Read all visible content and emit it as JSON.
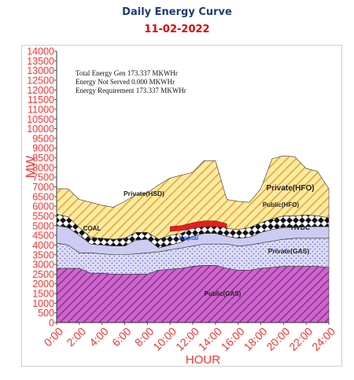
{
  "header": {
    "title": "Daily Energy Curve",
    "date": "11-02-2022"
  },
  "chart_data": {
    "type": "area",
    "title": "Daily Energy Curve",
    "subtitle": "11-02-2022",
    "xlabel": "HOUR",
    "ylabel": "MW",
    "ylim": [
      0,
      14000
    ],
    "yticks": [
      "0",
      "500",
      "1000",
      "1500",
      "2000",
      "2500",
      "3000",
      "3500",
      "4000",
      "4500",
      "5000",
      "5500",
      "6000",
      "6500",
      "7000",
      "7500",
      "8000",
      "8500",
      "9000",
      "9500",
      "10000",
      "10500",
      "11000",
      "11500",
      "12000",
      "12500",
      "13000",
      "13500",
      "14000"
    ],
    "x": [
      "0:00",
      "1:00",
      "2:00",
      "3:00",
      "4:00",
      "5:00",
      "6:00",
      "7:00",
      "8:00",
      "9:00",
      "10:00",
      "11:00",
      "12:00",
      "13:00",
      "14:00",
      "15:00",
      "16:00",
      "17:00",
      "18:00",
      "19:00",
      "20:00",
      "21:00",
      "22:00",
      "23:00",
      "24:00"
    ],
    "xticks": [
      "0:00",
      "2:00",
      "4:00",
      "6:00",
      "8:00",
      "10:00",
      "12:00",
      "14:00",
      "16:00",
      "18:00",
      "20:00",
      "22:00",
      "24:00"
    ],
    "annotations": [
      "Total Energy Gen 173.337 MKWHr",
      "Energy Not Served  0.000 MKWHr",
      "Energy Requirement      173.337 MKWHr"
    ],
    "series": [
      {
        "name": "Public(GAS)",
        "color": "#cc66cc",
        "values": [
          2800,
          2800,
          2800,
          2550,
          2550,
          2500,
          2500,
          2500,
          2500,
          2700,
          2750,
          2800,
          2900,
          2950,
          2950,
          2800,
          2700,
          2700,
          2800,
          2850,
          2900,
          2900,
          2900,
          2900,
          2850
        ]
      },
      {
        "name": "Private(GAS)",
        "color": "#c8cdf0",
        "values": [
          1300,
          1200,
          800,
          1050,
          1000,
          1000,
          1000,
          1050,
          1100,
          950,
          1000,
          1050,
          1050,
          1100,
          1100,
          1250,
          1250,
          1300,
          1300,
          1350,
          1400,
          1450,
          1450,
          1450,
          1500
        ]
      },
      {
        "name": "HVDC",
        "color": "#d9d9f5",
        "values": [
          900,
          900,
          900,
          450,
          450,
          450,
          450,
          700,
          700,
          200,
          250,
          300,
          500,
          550,
          550,
          400,
          400,
          400,
          550,
          600,
          600,
          550,
          600,
          600,
          600
        ]
      },
      {
        "name": "Kaptai",
        "color": "#7dbaf0",
        "values": [
          0,
          0,
          0,
          0,
          0,
          0,
          0,
          0,
          0,
          0,
          0,
          0,
          0,
          0,
          0,
          0,
          0,
          0,
          0,
          0,
          0,
          0,
          0,
          0,
          0
        ]
      },
      {
        "name": "COAL",
        "color": "#f2f2f2",
        "values": [
          0,
          0,
          0,
          0,
          0,
          0,
          0,
          0,
          0,
          0,
          0,
          0,
          0,
          0,
          0,
          0,
          0,
          0,
          0,
          0,
          0,
          0,
          0,
          0,
          0
        ]
      },
      {
        "name": "Public(HFO)",
        "color": "#222222",
        "values": [
          600,
          550,
          400,
          350,
          350,
          350,
          400,
          400,
          350,
          450,
          500,
          450,
          500,
          550,
          550,
          400,
          450,
          500,
          500,
          550,
          600,
          600,
          600,
          550,
          450
        ]
      },
      {
        "name": "Private(HFO)",
        "color": "#f3c63f",
        "values": [
          1300,
          1450,
          1450,
          1800,
          1700,
          1650,
          1900,
          1950,
          2050,
          2800,
          2950,
          3000,
          2800,
          3200,
          3200,
          1500,
          1450,
          1300,
          1750,
          3100,
          3100,
          3050,
          2400,
          2300,
          1500
        ]
      },
      {
        "name": "Private(HSD)",
        "color": "#ffffff",
        "values": [
          0,
          0,
          0,
          0,
          0,
          0,
          0,
          0,
          0,
          0,
          0,
          0,
          0,
          0,
          0,
          0,
          0,
          0,
          0,
          0,
          0,
          0,
          0,
          0,
          0
        ]
      }
    ],
    "overlay": {
      "name": "Red band",
      "color": "#e02020",
      "x": [
        "10:00",
        "11:00",
        "12:00",
        "13:00",
        "14:00",
        "15:00"
      ],
      "lower": [
        4700,
        4750,
        4850,
        4950,
        4950,
        4900
      ],
      "upper": [
        4950,
        5000,
        5150,
        5250,
        5250,
        5100
      ]
    },
    "legend": "inline labels"
  }
}
